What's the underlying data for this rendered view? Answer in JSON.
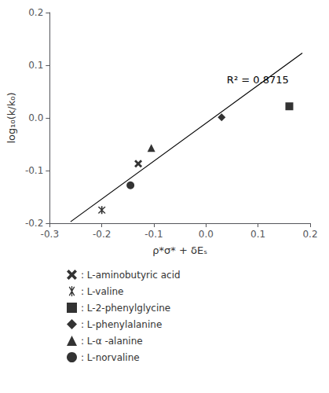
{
  "chart_data": {
    "type": "scatter",
    "xlabel": "ρ*σ* + δEₛ",
    "ylabel": "log₁₀(k/k₀)",
    "xlim": [
      -0.3,
      0.2
    ],
    "ylim": [
      -0.2,
      0.2
    ],
    "xticks": [
      -0.3,
      -0.2,
      -0.1,
      {
        "value": 0.0,
        "label": "0.0"
      },
      0.1,
      0.2
    ],
    "yticks": [
      -0.2,
      -0.1,
      {
        "value": 0.0,
        "label": "0.0"
      },
      0.1,
      0.2
    ],
    "grid": false,
    "legend": "bottom",
    "series": [
      {
        "type": "line",
        "line_style": "solid",
        "color": "black",
        "x": [
          -0.26,
          0.185
        ],
        "values": [
          -0.1972,
          0.1232
        ]
      },
      {
        "name": ": L-aminobutyric acid",
        "type": "scatter",
        "marker": "x",
        "color": "black",
        "x": [
          -0.13
        ],
        "values": [
          -0.087
        ]
      },
      {
        "name": ": L-valine",
        "type": "scatter",
        "marker": "asterisk",
        "color": "black",
        "x": [
          -0.2
        ],
        "values": [
          -0.175
        ]
      },
      {
        "name": ": L-2-phenylglycine",
        "type": "scatter",
        "marker": "square",
        "color": "black",
        "x": [
          0.16
        ],
        "values": [
          0.022
        ]
      },
      {
        "name": ": L-phenylalanine",
        "type": "scatter",
        "marker": "diamond",
        "color": "black",
        "x": [
          0.03
        ],
        "values": [
          0.001
        ]
      },
      {
        "name": ": L-α -alanine",
        "type": "scatter",
        "marker": "triangle",
        "color": "black",
        "x": [
          -0.105
        ],
        "values": [
          -0.057
        ]
      },
      {
        "name": ": L-norvaline",
        "type": "scatter",
        "marker": "circle",
        "color": "black",
        "x": [
          -0.145
        ],
        "values": [
          -0.128
        ]
      }
    ],
    "annotations": [
      {
        "text": "R² = 0.8715",
        "x": 0.04,
        "y": 0.082
      }
    ]
  }
}
